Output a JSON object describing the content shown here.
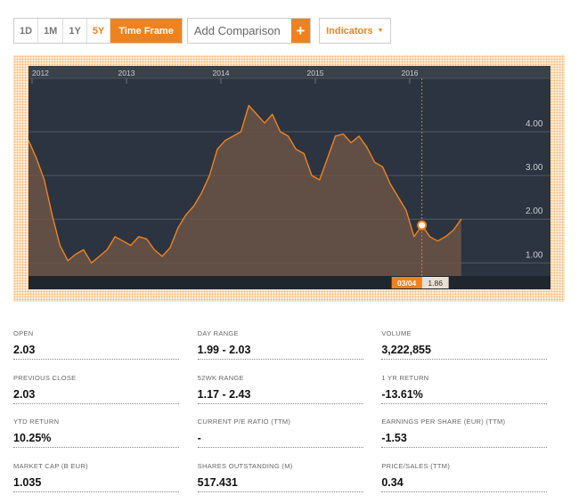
{
  "toolbar": {
    "ranges": [
      "1D",
      "1M",
      "1Y",
      "5Y"
    ],
    "active_range": "5Y",
    "time_frame_label": "Time Frame",
    "comparison_label": "Add Comparison",
    "comparison_plus": "+",
    "indicators_label": "Indicators",
    "indicators_caret": "▼"
  },
  "colors": {
    "accent": "#f0821e",
    "plot_background": "#2b3440",
    "line": "#f0821e",
    "area_fill": "#6b5548",
    "gridline": "#5d6570"
  },
  "chart_data": {
    "type": "area",
    "x_tick_labels": [
      "2012",
      "2013",
      "2014",
      "2015",
      "2016"
    ],
    "y_tick_labels": [
      "1.00",
      "2.00",
      "3.00",
      "4.00"
    ],
    "ylim": [
      0.7,
      5.1
    ],
    "xlim": [
      "2012-01",
      "2016-12"
    ],
    "grid": true,
    "y_axis_side": "right",
    "x_axis_side": "top",
    "crosshair": {
      "date_label": "03/04",
      "value_label": "1.86",
      "value": 1.86
    },
    "series": [
      {
        "x": [
          "2012-01",
          "2012-02",
          "2012-03",
          "2012-04",
          "2012-05",
          "2012-06",
          "2012-07",
          "2012-08",
          "2012-09",
          "2012-10",
          "2012-11",
          "2012-12",
          "2013-01",
          "2013-02",
          "2013-03",
          "2013-04",
          "2013-05",
          "2013-06",
          "2013-07",
          "2013-08",
          "2013-09",
          "2013-10",
          "2013-11",
          "2013-12",
          "2014-01",
          "2014-02",
          "2014-03",
          "2014-04",
          "2014-05",
          "2014-06",
          "2014-07",
          "2014-08",
          "2014-09",
          "2014-10",
          "2014-11",
          "2014-12",
          "2015-01",
          "2015-02",
          "2015-03",
          "2015-04",
          "2015-05",
          "2015-06",
          "2015-07",
          "2015-08",
          "2015-09",
          "2015-10",
          "2015-11",
          "2015-12",
          "2016-01",
          "2016-02",
          "2016-03",
          "2016-04",
          "2016-05",
          "2016-06",
          "2016-07",
          "2016-08"
        ],
        "y": [
          3.8,
          3.4,
          2.9,
          2.1,
          1.4,
          1.05,
          1.2,
          1.3,
          1.0,
          1.15,
          1.3,
          1.6,
          1.5,
          1.4,
          1.6,
          1.55,
          1.3,
          1.15,
          1.35,
          1.8,
          2.1,
          2.3,
          2.6,
          3.0,
          3.6,
          3.8,
          3.9,
          4.0,
          4.6,
          4.4,
          4.2,
          4.4,
          4.0,
          3.9,
          3.6,
          3.5,
          3.0,
          2.9,
          3.4,
          3.9,
          3.95,
          3.75,
          3.9,
          3.65,
          3.3,
          3.2,
          2.8,
          2.5,
          2.2,
          1.6,
          1.86,
          1.6,
          1.5,
          1.6,
          1.75,
          2.0
        ]
      }
    ]
  },
  "stats": [
    {
      "label": "OPEN",
      "value": "2.03"
    },
    {
      "label": "DAY RANGE",
      "value": "1.99 - 2.03"
    },
    {
      "label": "VOLUME",
      "value": "3,222,855"
    },
    {
      "label": "PREVIOUS CLOSE",
      "value": "2.03"
    },
    {
      "label": "52WK RANGE",
      "value": "1.17 - 2.43"
    },
    {
      "label": "1 YR RETURN",
      "value": "-13.61%"
    },
    {
      "label": "YTD RETURN",
      "value": "10.25%"
    },
    {
      "label": "CURRENT P/E RATIO (TTM)",
      "value": "-"
    },
    {
      "label": "EARNINGS PER SHARE (EUR) (TTM)",
      "value": "-1.53"
    },
    {
      "label": "MARKET CAP (B EUR)",
      "value": "1.035"
    },
    {
      "label": "SHARES OUTSTANDING (M)",
      "value": "517.431"
    },
    {
      "label": "PRICE/SALES (TTM)",
      "value": "0.34"
    }
  ]
}
